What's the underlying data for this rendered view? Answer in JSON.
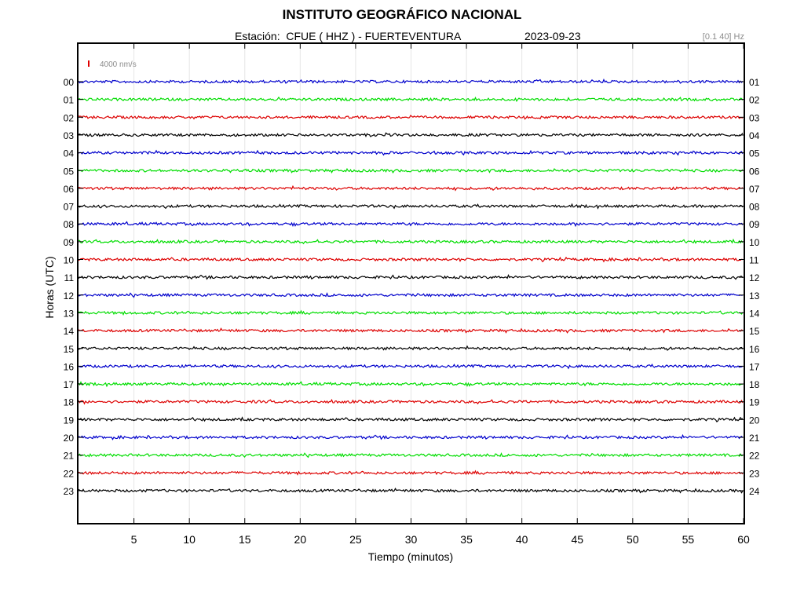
{
  "header": {
    "title": "INSTITUTO GEOGRÁFICO NACIONAL",
    "station_text": "Estación:  CFUE ( HHZ ) - FUERTEVENTURA",
    "date": "2023-09-23",
    "filter_band": "[0.1 40] Hz"
  },
  "chart_data": {
    "type": "line",
    "title": "INSTITUTO GEOGRÁFICO NACIONAL",
    "xlabel": "Tiempo (minutos)",
    "ylabel": "Horas (UTC)",
    "xlim": [
      0,
      60
    ],
    "x_ticks": [
      5,
      10,
      15,
      20,
      25,
      30,
      35,
      40,
      45,
      50,
      55,
      60
    ],
    "grid": true,
    "scale_bar": {
      "value": 4000,
      "label": "4000 nm/s",
      "color": "#e00000"
    },
    "colors": [
      "#0000cc",
      "#00dd00",
      "#dd0000",
      "#000000"
    ],
    "left_labels": [
      "00",
      "01",
      "02",
      "03",
      "04",
      "05",
      "06",
      "07",
      "08",
      "09",
      "10",
      "11",
      "12",
      "13",
      "14",
      "15",
      "16",
      "17",
      "18",
      "19",
      "20",
      "21",
      "22",
      "23"
    ],
    "right_labels": [
      "01",
      "02",
      "03",
      "04",
      "05",
      "06",
      "07",
      "08",
      "09",
      "10",
      "11",
      "12",
      "13",
      "14",
      "15",
      "16",
      "17",
      "18",
      "19",
      "20",
      "21",
      "22",
      "23",
      "24"
    ]
  }
}
